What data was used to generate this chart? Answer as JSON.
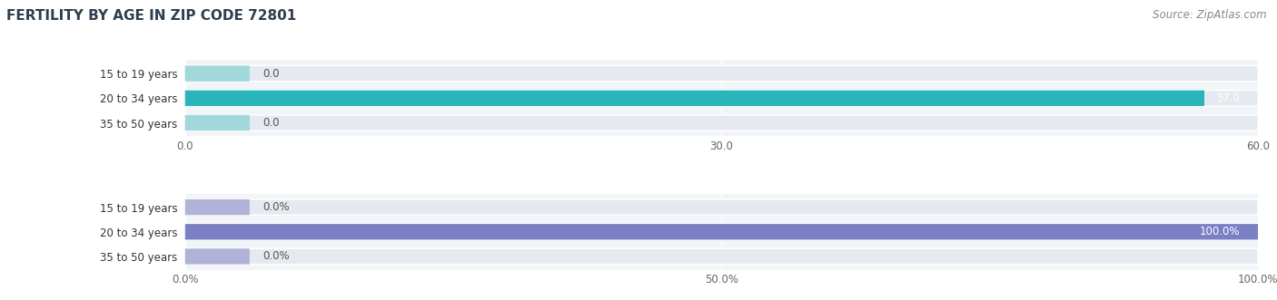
{
  "title": "FERTILITY BY AGE IN ZIP CODE 72801",
  "source": "Source: ZipAtlas.com",
  "top_chart": {
    "categories": [
      "15 to 19 years",
      "20 to 34 years",
      "35 to 50 years"
    ],
    "values": [
      0.0,
      57.0,
      0.0
    ],
    "xlim": [
      0,
      60
    ],
    "xticks": [
      0.0,
      30.0,
      60.0
    ],
    "xtick_labels": [
      "0.0",
      "30.0",
      "60.0"
    ],
    "bar_color_full": "#29b5ba",
    "bar_color_light": "#a0d8dc",
    "bar_bg": "#e4eaf0"
  },
  "bottom_chart": {
    "categories": [
      "15 to 19 years",
      "20 to 34 years",
      "35 to 50 years"
    ],
    "values": [
      0.0,
      100.0,
      0.0
    ],
    "xlim": [
      0,
      100
    ],
    "xticks": [
      0.0,
      50.0,
      100.0
    ],
    "xtick_labels": [
      "0.0%",
      "50.0%",
      "100.0%"
    ],
    "bar_color_full": "#7b7fc4",
    "bar_color_light": "#b0b2d8",
    "bar_bg": "#e4eaf0"
  },
  "label_fontsize": 8.5,
  "value_fontsize": 8.5,
  "title_fontsize": 11,
  "source_fontsize": 8.5,
  "title_color": "#2c3e50",
  "source_color": "#888888",
  "label_color": "#333333",
  "value_color_light": "#555555",
  "value_color_dark": "#ffffff",
  "ax_facecolor": "#f2f5f8"
}
